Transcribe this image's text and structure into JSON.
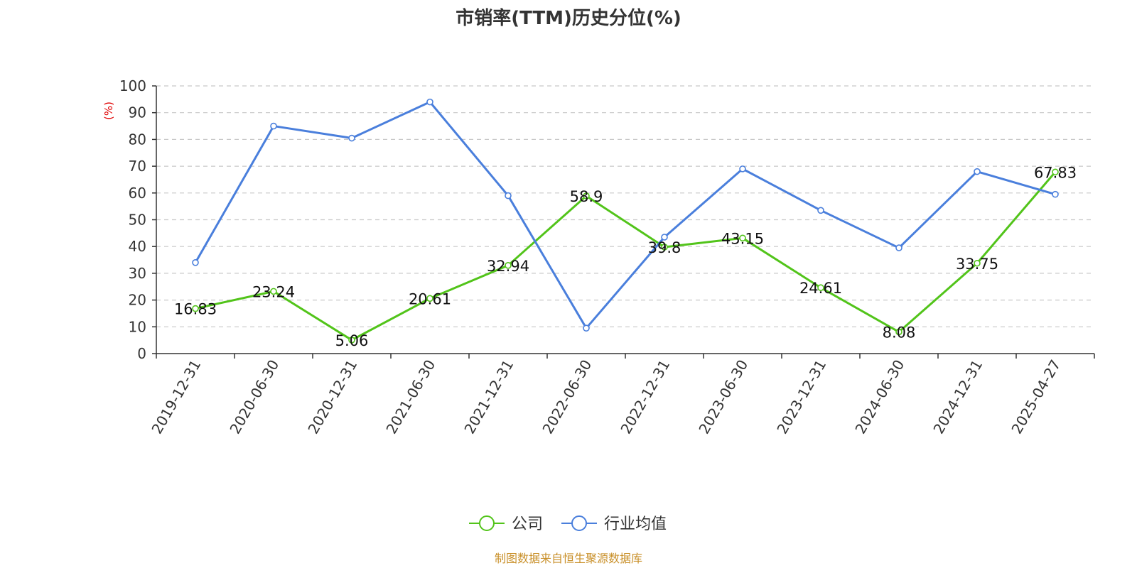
{
  "colors": {
    "company": "#52c41a",
    "industry": "#4a7fdc",
    "ylabel": "#e00000",
    "source": "#c9902a",
    "grid": "#c8c8c8",
    "axis": "#333333"
  },
  "chart_data": {
    "type": "line",
    "title": "市销率(TTM)历史分位(%)",
    "ylabel": "(%)",
    "ylim": [
      0,
      100
    ],
    "yticks": [
      0,
      10,
      20,
      30,
      40,
      50,
      60,
      70,
      80,
      90,
      100
    ],
    "grid": true,
    "legend_position": "bottom-center",
    "categories": [
      "2019-12-31",
      "2020-06-30",
      "2020-12-31",
      "2021-06-30",
      "2021-12-31",
      "2022-06-30",
      "2022-12-31",
      "2023-06-30",
      "2023-12-31",
      "2024-06-30",
      "2024-12-31",
      "2025-04-27"
    ],
    "series": [
      {
        "name": "公司",
        "values": [
          16.83,
          23.24,
          5.06,
          20.61,
          32.94,
          58.9,
          39.8,
          43.15,
          24.61,
          8.08,
          33.75,
          67.83
        ],
        "data_labels": [
          "16.83",
          "23.24",
          "5.06",
          "20.61",
          "32.94",
          "58.9",
          "39.8",
          "43.15",
          "24.61",
          "8.08",
          "33.75",
          "67.83"
        ]
      },
      {
        "name": "行业均值",
        "values": [
          34,
          85,
          80.5,
          94,
          59,
          9.5,
          43.5,
          69,
          53.5,
          39.5,
          68,
          59.5
        ]
      }
    ],
    "source": "制图数据来自恒生聚源数据库"
  }
}
